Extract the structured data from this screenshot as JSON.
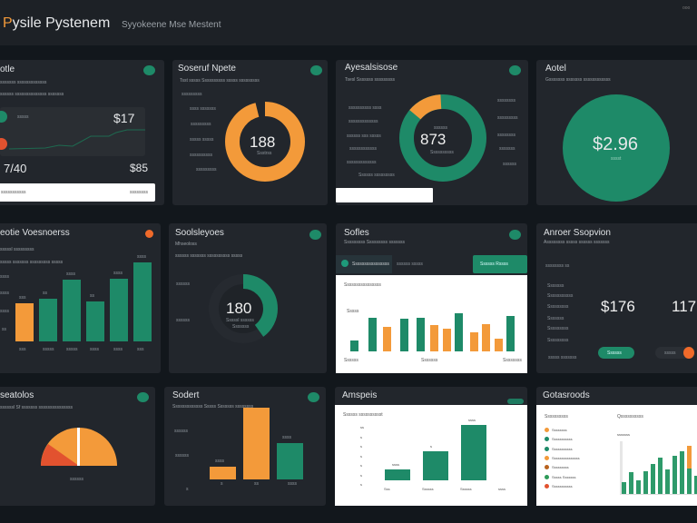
{
  "header": {
    "title_accent": "P",
    "title": "ysile Pystenem",
    "subtitle": "Syyokeene Mse Mestent",
    "corner": "ooo"
  },
  "colors": {
    "green": "#1e8a68",
    "orange": "#f39a3a",
    "red": "#e2522f"
  },
  "r1a": {
    "title": "otle",
    "sub": "sssssss sssssssssssss",
    "sub2": "ssssss ssssssssssssss sssssss",
    "legend": "sssss",
    "value1": "$17",
    "value2": "7/40",
    "value3": "$85",
    "foot_left": "sssssssssss",
    "foot_right": "ssssssss"
  },
  "r1b": {
    "title": "Soseruf Npete",
    "sub": "Tsst sssss Ssssssssss sssss sssssssss",
    "labels": [
      "sssssssss",
      "ssss sssssss",
      "sssssssss",
      "sssss sssss",
      "ssssssssss",
      "sssssssss"
    ],
    "center": "188",
    "center_sub": "Ssstrss",
    "progress": 0.96
  },
  "r1c": {
    "title": "Ayesalsisose",
    "sub": "Tsesl Sssssss sssssssss",
    "left_labels": [
      "ssssssssss ssss",
      "sssssssssssss",
      "ssssss sss sssss",
      "ssssssssssss",
      "sssssssssssss",
      "Ssssss sssssssss"
    ],
    "right_labels": [
      "ssssssss",
      "sssssssss",
      "ssssssss",
      "sssssss",
      "ssssss"
    ],
    "center_top": "ssssss",
    "center": "873",
    "center_sub": "Ssssssssss",
    "orange_share": 0.13
  },
  "r1d": {
    "title": "Aotel",
    "sub": "Gsssssss sssssss ssssssssssss",
    "value": "$2.96",
    "value_sub": "sssst"
  },
  "r2a": {
    "title": "eotie Voesnoerss",
    "sub": "sssssl sssssssss",
    "sub2": "sssss sssssss sssssssss sssss",
    "y_labels": [
      "ssss",
      "ssss",
      "ssss",
      "ss"
    ],
    "bars": [
      {
        "label": "sss",
        "value": 42,
        "color": "orange",
        "top": "sss"
      },
      {
        "label": "sssss",
        "value": 47,
        "color": "green",
        "top": "ss"
      },
      {
        "label": "sssss",
        "value": 68,
        "color": "green",
        "top": "ssss"
      },
      {
        "label": "ssss",
        "value": 44,
        "color": "green",
        "top": "ss"
      },
      {
        "label": "ssss",
        "value": 69,
        "color": "green",
        "top": "ssss"
      },
      {
        "label": "sss",
        "value": 87,
        "color": "green",
        "top": "ssss"
      }
    ]
  },
  "r2b": {
    "title": "Soolsleyoes",
    "sub": "Mhseoloss",
    "sub2": "ssssss sssssss ssssssssss sssss",
    "labels": [
      "ssssss",
      "ssssss"
    ],
    "center": "180",
    "center_sub": "Sssssl ssssss",
    "center_sub2": "Sssssss",
    "progress": 0.4
  },
  "r2c": {
    "title": "Sofles",
    "sub": "Sssssssss  Sssssssss sssssss",
    "tab": "Ssssssssssssssss",
    "tab2": "ssssss sssss",
    "button": "Ssssss Rssss",
    "chart_title": "Ssssssssssssssss",
    "y_label": "Sssss",
    "x_labels": [
      "Ssssss",
      "Sssssss",
      "Ssssssss"
    ],
    "bars": [
      {
        "value": 12,
        "color": "green"
      },
      {
        "value": 37,
        "color": "green"
      },
      {
        "value": 27,
        "color": "orange"
      },
      {
        "value": 36,
        "color": "green"
      },
      {
        "value": 37,
        "color": "green"
      },
      {
        "value": 29,
        "color": "orange"
      },
      {
        "value": 25,
        "color": "orange"
      },
      {
        "value": 42,
        "color": "green"
      },
      {
        "value": 21,
        "color": "orange"
      },
      {
        "value": 30,
        "color": "orange"
      },
      {
        "value": 14,
        "color": "orange"
      },
      {
        "value": 39,
        "color": "green"
      }
    ]
  },
  "r2d": {
    "title": "Anroer Ssopvion",
    "sub": "Assssssss sssss ssssss sssssss",
    "sub2": "ssssssss ss",
    "labels": [
      "Sssssss",
      "Sssssssssss",
      "Sssssssss",
      "Sssssss",
      "Sssssssss",
      "Sssssssss"
    ],
    "value1": "$176",
    "value2": "117",
    "foot": "sssss sssssss",
    "button": "Ssssss",
    "toggle": "sssss"
  },
  "r3a": {
    "title": "seatolos",
    "sub": "ssssssl Sf sssssss sssssssssssssss",
    "label": "ssssss",
    "red_share": 0.2
  },
  "r3b": {
    "title": "Sodert",
    "sub": "Sssssssssssss Sssss Sssssss ssssssss",
    "y_labels": [
      "ssssss",
      "ssssss",
      "s"
    ],
    "bars": [
      {
        "label": "s",
        "value": 15,
        "color": "orange",
        "top": "ssss"
      },
      {
        "label": "ss",
        "value": 83,
        "color": "orange",
        "top": ""
      },
      {
        "label": "ssss",
        "value": 42,
        "color": "green",
        "top": "ssss"
      }
    ]
  },
  "r3c": {
    "title": "Amspeis",
    "badge": "ssss",
    "chart_title": "Ssssss sssssssssst",
    "y_labels": [
      "ss",
      "s",
      "s",
      "s",
      "s",
      "s",
      "s"
    ],
    "x_labels": [
      "Sss",
      "Ssssss",
      "Ssssss",
      "ssss"
    ],
    "bars": [
      {
        "value": 2,
        "top": "ssss"
      },
      {
        "value": 5.3,
        "top": "s"
      },
      {
        "value": 10,
        "top": "ssss"
      }
    ]
  },
  "r3d": {
    "title": "Gotasroods",
    "legend_title": "Ssssssssss",
    "chart_title": "Qssssssssss",
    "axis": "sssssss",
    "legend": [
      {
        "label": "Ssssssss",
        "color": "#f39a3a"
      },
      {
        "label": "Sssssssssss",
        "color": "#1e8a68"
      },
      {
        "label": "Sssssssssss",
        "color": "#1e8a68"
      },
      {
        "label": "Sssssssssssssss",
        "color": "#f39a3a"
      },
      {
        "label": "Sssssssss",
        "color": "#b8621e"
      },
      {
        "label": "Sssss Sssssss",
        "color": "#2e9a58"
      },
      {
        "label": "Sssssssssss",
        "color": "#e2522f"
      }
    ],
    "bars": [
      {
        "g": 13,
        "o": 0
      },
      {
        "g": 24,
        "o": 0
      },
      {
        "g": 15,
        "o": 0
      },
      {
        "g": 25,
        "o": 0
      },
      {
        "g": 33,
        "o": 0
      },
      {
        "g": 40,
        "o": 0
      },
      {
        "g": 27,
        "o": 0
      },
      {
        "g": 42,
        "o": 0
      },
      {
        "g": 47,
        "o": 0
      },
      {
        "g": 28,
        "o": 35
      },
      {
        "g": 20,
        "o": 0
      }
    ]
  }
}
